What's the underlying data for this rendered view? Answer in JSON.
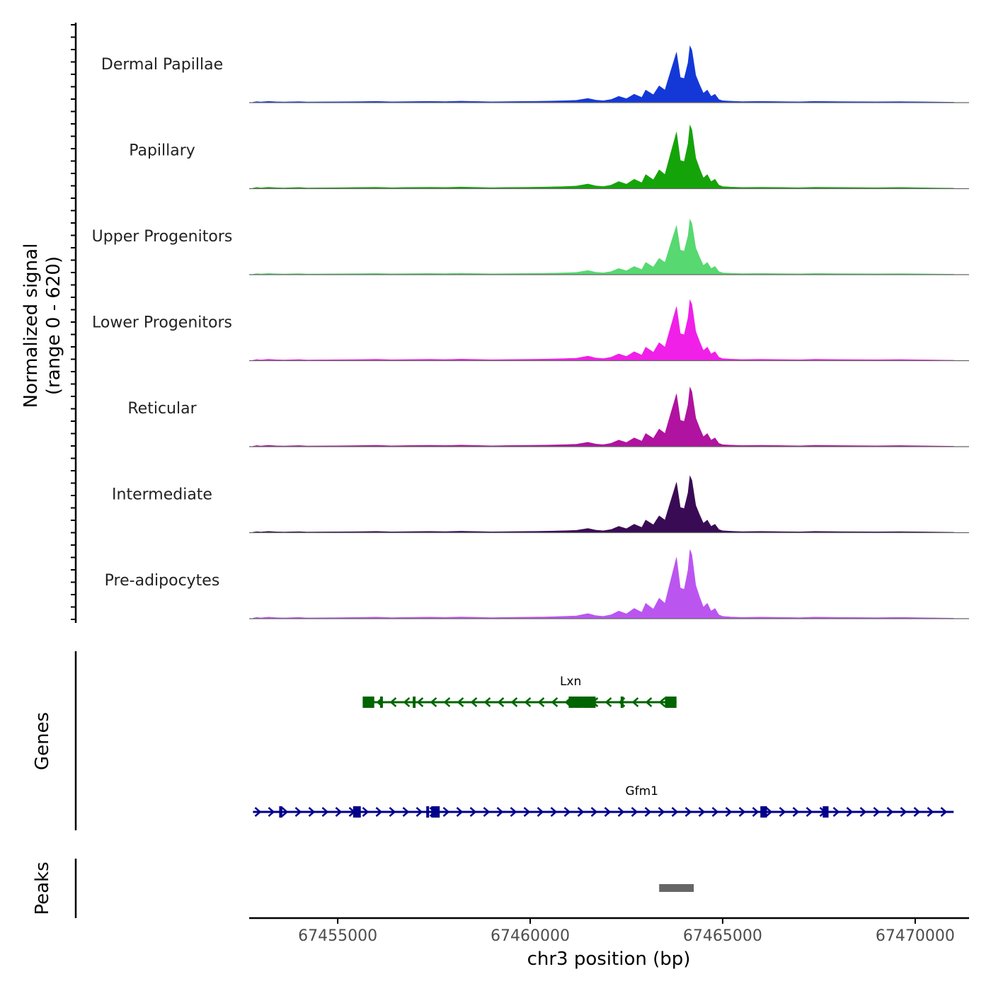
{
  "chart_data": {
    "type": "area",
    "title": "",
    "signal_axis_label": "Normalized signal",
    "signal_axis_range_label": "(range 0 - 620)",
    "ylim": [
      0,
      620
    ],
    "xlabel": "chr3 position (bp)",
    "xlim": [
      67452700,
      67471400
    ],
    "x_ticks": [
      67455000,
      67460000,
      67465000,
      67470000
    ],
    "x_tick_labels": [
      "67455000",
      "67460000",
      "67465000",
      "67470000"
    ],
    "peak_shape": [
      [
        67452800,
        4
      ],
      [
        67452900,
        10
      ],
      [
        67453000,
        6
      ],
      [
        67453200,
        12
      ],
      [
        67453400,
        8
      ],
      [
        67453600,
        6
      ],
      [
        67454000,
        10
      ],
      [
        67454200,
        6
      ],
      [
        67455000,
        8
      ],
      [
        67455600,
        10
      ],
      [
        67456000,
        12
      ],
      [
        67456400,
        8
      ],
      [
        67456800,
        10
      ],
      [
        67457400,
        12
      ],
      [
        67457800,
        10
      ],
      [
        67458200,
        14
      ],
      [
        67459000,
        8
      ],
      [
        67459400,
        10
      ],
      [
        67460000,
        12
      ],
      [
        67460400,
        14
      ],
      [
        67460900,
        18
      ],
      [
        67461200,
        22
      ],
      [
        67461500,
        40
      ],
      [
        67461700,
        24
      ],
      [
        67461900,
        18
      ],
      [
        67462100,
        30
      ],
      [
        67462300,
        60
      ],
      [
        67462500,
        38
      ],
      [
        67462700,
        80
      ],
      [
        67462900,
        50
      ],
      [
        67463000,
        120
      ],
      [
        67463200,
        75
      ],
      [
        67463350,
        160
      ],
      [
        67463500,
        120
      ],
      [
        67463650,
        300
      ],
      [
        67463750,
        420
      ],
      [
        67463800,
        480
      ],
      [
        67463900,
        240
      ],
      [
        67464000,
        230
      ],
      [
        67464100,
        380
      ],
      [
        67464150,
        540
      ],
      [
        67464200,
        500
      ],
      [
        67464300,
        260
      ],
      [
        67464400,
        170
      ],
      [
        67464500,
        90
      ],
      [
        67464600,
        120
      ],
      [
        67464700,
        60
      ],
      [
        67464800,
        80
      ],
      [
        67464900,
        30
      ],
      [
        67465000,
        18
      ],
      [
        67465200,
        14
      ],
      [
        67465500,
        10
      ],
      [
        67466000,
        12
      ],
      [
        67466500,
        10
      ],
      [
        67467000,
        8
      ],
      [
        67467400,
        12
      ],
      [
        67468000,
        10
      ],
      [
        67469000,
        8
      ],
      [
        67469600,
        10
      ],
      [
        67470500,
        6
      ],
      [
        67471000,
        4
      ]
    ],
    "series": [
      {
        "name": "Dermal Papillae",
        "color": "#1438d8",
        "scale": 0.82
      },
      {
        "name": "Papillary",
        "color": "#15a30a",
        "scale": 0.92
      },
      {
        "name": "Upper Progenitors",
        "color": "#57d870",
        "scale": 0.8
      },
      {
        "name": "Lower Progenitors",
        "color": "#f020e8",
        "scale": 0.88
      },
      {
        "name": "Reticular",
        "color": "#b0139f",
        "scale": 0.86
      },
      {
        "name": "Intermediate",
        "color": "#3a0b55",
        "scale": 0.82
      },
      {
        "name": "Pre-adipocytes",
        "color": "#bb55f0",
        "scale": 1.0
      }
    ],
    "genes_axis_label": "Genes",
    "genes": [
      {
        "name": "Lxn",
        "strand": "-",
        "color": "#006400",
        "start": 67455650,
        "end": 67463800,
        "exons": [
          [
            67455650,
            67455950
          ],
          [
            67456100,
            67456150
          ],
          [
            67456950,
            67457000
          ],
          [
            67461000,
            67461350
          ],
          [
            67461350,
            67461700
          ],
          [
            67462350,
            67462400
          ],
          [
            67463500,
            67463800
          ]
        ]
      },
      {
        "name": "Gfm1",
        "strand": "+",
        "color": "#00008b",
        "start": 67452800,
        "end": 67471000,
        "exons": [
          [
            67453480,
            67453560
          ],
          [
            67455400,
            67455600
          ],
          [
            67457300,
            67457350
          ],
          [
            67457430,
            67457650
          ],
          [
            67465980,
            67466150
          ],
          [
            67467600,
            67467750
          ]
        ]
      }
    ],
    "peaks_axis_label": "Peaks",
    "peaks": [
      [
        67463350,
        67464250
      ]
    ]
  }
}
